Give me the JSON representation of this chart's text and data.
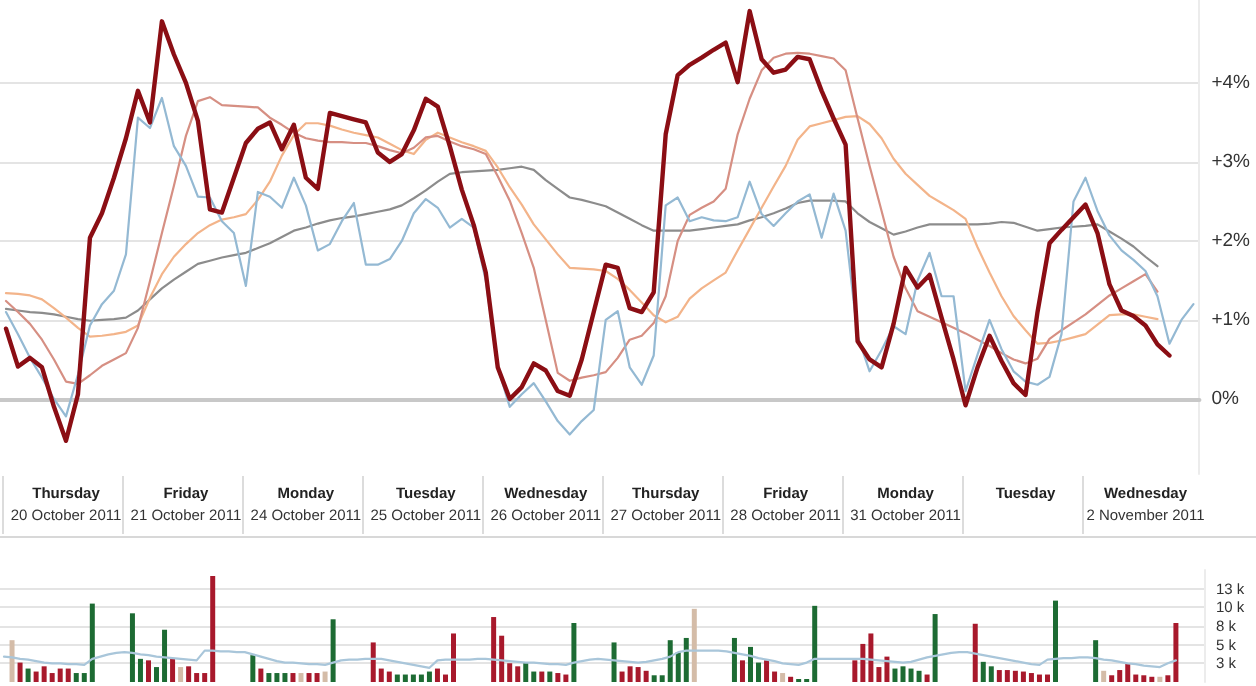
{
  "chart_data": [
    {
      "type": "line",
      "marker": "none",
      "line_style": "solid",
      "grid": "y",
      "categories": [
        null,
        null,
        null,
        null,
        null,
        "Thursday\n20 October 2011",
        null,
        null,
        null,
        null,
        null,
        null,
        null,
        null,
        null,
        "Friday\n21 October 2011",
        null,
        null,
        null,
        null,
        null,
        null,
        null,
        null,
        null,
        "Monday\n24 October 2011",
        null,
        null,
        null,
        null,
        null,
        null,
        null,
        null,
        null,
        "Tuesday\n25 October 2011",
        null,
        null,
        null,
        null,
        null,
        null,
        null,
        null,
        null,
        "Wednesday\n26 October 2011",
        null,
        null,
        null,
        null,
        null,
        null,
        null,
        null,
        null,
        "Thursday\n27 October 2011",
        null,
        null,
        null,
        null,
        null,
        null,
        null,
        null,
        null,
        "Friday\n28 October 2011",
        null,
        null,
        null,
        null,
        null,
        null,
        null,
        null,
        null,
        "Monday\n31 October 2011",
        null,
        null,
        null,
        null,
        null,
        null,
        null,
        null,
        null,
        "Tuesday",
        null,
        null,
        null,
        null,
        null,
        null,
        null,
        null,
        null,
        "Wednesday\n2 November 2011",
        null,
        null,
        null,
        null
      ],
      "ylim": [
        -0.95,
        5.05
      ],
      "yticks": [
        {
          "value": 0,
          "label": "0%"
        },
        {
          "value": 1,
          "label": "+1%"
        },
        {
          "value": 2,
          "label": "+2%"
        },
        {
          "value": 3,
          "label": "+3%"
        },
        {
          "value": 4,
          "label": "+4%"
        }
      ],
      "series": [
        {
          "color": "#8b0e14",
          "values": [
            0.89,
            0.41,
            0.52,
            0.4,
            -0.1,
            -0.53,
            0.06,
            2.04,
            2.35,
            2.8,
            3.3,
            3.9,
            3.5,
            4.78,
            4.36,
            4.0,
            3.52,
            2.4,
            2.36,
            2.8,
            3.24,
            3.42,
            3.5,
            3.16,
            3.47,
            2.8,
            2.66,
            3.62,
            3.58,
            3.54,
            3.5,
            3.12,
            3.0,
            3.1,
            3.4,
            3.8,
            3.7,
            3.2,
            2.65,
            2.2,
            1.6,
            0.4,
            0,
            0.15,
            0.45,
            0.36,
            0.1,
            0.04,
            0.5,
            1.1,
            1.7,
            1.66,
            1.15,
            1.1,
            1.35,
            3.35,
            4.1,
            4.23,
            4.32,
            4.42,
            4.51,
            4.01,
            4.91,
            4.3,
            4.13,
            4.17,
            4.33,
            4.3,
            3.9,
            3.55,
            3.22,
            0.73,
            0.5,
            0.4,
            0.95,
            1.66,
            1.41,
            1.57,
            1.03,
            0.5,
            -0.08,
            0.4,
            0.8,
            0.48,
            0.2,
            0.05,
            1.1,
            1.97,
            2.14,
            2.3,
            2.46,
            2.1,
            1.45,
            1.12,
            1.05,
            0.93,
            0.69,
            0.55,
            null,
            null
          ]
        },
        {
          "color": "#94b9d3",
          "values": [
            1.1,
            0.82,
            0.52,
            0.27,
            0,
            -0.22,
            0.31,
            0.93,
            1.2,
            1.37,
            1.83,
            3.56,
            3.43,
            3.81,
            3.2,
            2.95,
            2.56,
            2.55,
            2.25,
            2.1,
            1.43,
            2.62,
            2.56,
            2.42,
            2.8,
            2.45,
            1.88,
            1.96,
            2.25,
            2.48,
            1.7,
            1.7,
            1.77,
            2.0,
            2.35,
            2.53,
            2.42,
            2.17,
            2.28,
            2.17,
            1.5,
            0.4,
            -0.1,
            0.06,
            0.2,
            -0.03,
            -0.28,
            -0.45,
            -0.28,
            -0.14,
            1.0,
            1.11,
            0.4,
            0.18,
            0.55,
            2.45,
            2.55,
            2.25,
            2.3,
            2.26,
            2.25,
            2.3,
            2.75,
            2.34,
            2.19,
            2.35,
            2.5,
            2.59,
            2.04,
            2.6,
            2.13,
            0.8,
            0.35,
            0.62,
            0.92,
            0.82,
            1.5,
            1.85,
            1.3,
            1.3,
            0.1,
            0.56,
            1.0,
            0.63,
            0.35,
            0.22,
            0.18,
            0.28,
            0.82,
            2.5,
            2.8,
            2.38,
            2.07,
            1.88,
            1.76,
            1.62,
            1.3,
            0.7,
            1.0,
            1.2
          ]
        },
        {
          "color": "#d68f83",
          "values": [
            1.24,
            1.1,
            0.95,
            0.75,
            0.5,
            0.22,
            0.19,
            0.3,
            0.42,
            0.5,
            0.58,
            0.9,
            1.49,
            2.1,
            2.7,
            3.33,
            3.77,
            3.82,
            3.72,
            3.71,
            3.7,
            3.69,
            3.56,
            3.47,
            3.37,
            3.3,
            3.27,
            3.25,
            3.25,
            3.24,
            3.24,
            3.2,
            3.15,
            3.11,
            3.18,
            3.31,
            3.33,
            3.26,
            3.2,
            3.16,
            3.1,
            2.82,
            2.51,
            2.1,
            1.66,
            1.0,
            0.33,
            0.23,
            0.27,
            0.3,
            0.34,
            0.52,
            0.75,
            0.8,
            0.96,
            1.3,
            2.0,
            2.33,
            2.42,
            2.5,
            2.66,
            3.35,
            3.8,
            4.16,
            4.32,
            4.37,
            4.38,
            4.37,
            4.34,
            4.31,
            4.16,
            3.55,
            2.95,
            2.38,
            1.8,
            1.4,
            1.11,
            1.04,
            0.97,
            0.9,
            0.83,
            0.75,
            0.67,
            0.58,
            0.5,
            0.45,
            0.51,
            0.76,
            0.87,
            0.97,
            1.07,
            1.19,
            1.31,
            1.4,
            1.49,
            1.58,
            1.36,
            null,
            null,
            null
          ]
        },
        {
          "color": "#f3b48a",
          "values": [
            1.34,
            1.33,
            1.31,
            1.26,
            1.15,
            1.03,
            0.9,
            0.79,
            0.8,
            0.82,
            0.85,
            0.93,
            1.28,
            1.58,
            1.8,
            1.96,
            2.1,
            2.2,
            2.27,
            2.3,
            2.34,
            2.52,
            2.75,
            3.08,
            3.34,
            3.49,
            3.49,
            3.46,
            3.41,
            3.37,
            3.34,
            3.31,
            3.23,
            3.15,
            3.1,
            3.28,
            3.37,
            3.31,
            3.25,
            3.2,
            3.14,
            2.93,
            2.68,
            2.46,
            2.21,
            2.02,
            1.83,
            1.66,
            1.65,
            1.64,
            1.62,
            1.52,
            1.38,
            1.22,
            1.06,
            0.97,
            1.04,
            1.27,
            1.4,
            1.5,
            1.6,
            1.88,
            2.15,
            2.42,
            2.69,
            2.95,
            3.28,
            3.45,
            3.49,
            3.53,
            3.57,
            3.58,
            3.48,
            3.3,
            3.04,
            2.85,
            2.71,
            2.57,
            2.48,
            2.39,
            2.28,
            1.92,
            1.6,
            1.3,
            1.05,
            0.87,
            0.7,
            0.71,
            0.74,
            0.78,
            0.82,
            0.94,
            1.06,
            1.07,
            1.07,
            1.04,
            1.01,
            null,
            null,
            null
          ]
        },
        {
          "color": "#8c8c8c",
          "values": [
            1.14,
            1.12,
            1.1,
            1.09,
            1.07,
            1.04,
            1.01,
            0.99,
            1.0,
            1.01,
            1.03,
            1.12,
            1.26,
            1.4,
            1.51,
            1.61,
            1.71,
            1.75,
            1.79,
            1.82,
            1.85,
            1.91,
            1.97,
            2.05,
            2.13,
            2.17,
            2.22,
            2.26,
            2.29,
            2.31,
            2.34,
            2.37,
            2.4,
            2.45,
            2.54,
            2.64,
            2.75,
            2.85,
            2.87,
            2.88,
            2.89,
            2.9,
            2.92,
            2.94,
            2.9,
            2.77,
            2.66,
            2.55,
            2.52,
            2.48,
            2.44,
            2.36,
            2.28,
            2.2,
            2.13,
            2.13,
            2.13,
            2.13,
            2.15,
            2.17,
            2.19,
            2.21,
            2.26,
            2.3,
            2.35,
            2.41,
            2.48,
            2.51,
            2.51,
            2.51,
            2.5,
            2.35,
            2.24,
            2.16,
            2.08,
            2.12,
            2.17,
            2.21,
            2.21,
            2.21,
            2.21,
            2.21,
            2.22,
            2.24,
            2.23,
            2.18,
            2.13,
            2.15,
            2.17,
            2.18,
            2.19,
            2.21,
            2.12,
            2.03,
            1.93,
            1.8,
            1.68,
            null,
            null,
            null
          ]
        }
      ]
    },
    {
      "type": "bar",
      "grid": "y",
      "tick_labels": "y",
      "marker": "none",
      "categories": [
        null,
        null,
        null,
        null,
        null,
        null,
        null,
        null,
        null,
        null,
        null,
        null,
        null,
        null,
        null,
        null,
        null,
        null,
        null,
        null,
        null,
        null,
        null,
        null,
        null,
        null,
        null,
        null,
        null,
        null,
        null,
        null,
        null,
        null,
        null,
        null,
        null,
        null,
        null,
        null,
        null,
        null,
        null,
        null,
        null,
        null,
        null,
        null,
        null,
        null,
        null,
        null,
        null,
        null,
        null,
        null,
        null,
        null,
        null,
        null,
        null,
        null,
        null,
        null,
        null,
        null,
        null,
        null,
        null,
        null,
        null,
        null,
        null,
        null,
        null,
        null,
        null,
        null,
        null,
        null,
        null,
        null,
        null,
        null,
        null,
        null,
        null,
        null,
        null,
        null,
        null,
        null,
        null,
        null,
        null,
        null,
        null,
        null,
        null,
        null,
        null,
        null,
        null,
        null,
        null,
        null,
        null,
        null,
        null,
        null,
        null,
        null,
        null,
        null,
        null,
        null,
        null,
        null,
        null,
        null,
        null,
        null,
        null,
        null,
        null,
        null,
        null,
        null,
        null,
        null,
        null,
        null,
        null,
        null,
        null,
        null,
        null,
        null,
        null,
        null,
        null,
        null,
        null,
        null,
        null,
        null,
        null,
        null,
        null,
        null
      ],
      "ylim": [
        0,
        15
      ],
      "yticks": [
        {
          "value": 2.5,
          "label": "3 k"
        },
        {
          "value": 5,
          "label": "5 k"
        },
        {
          "value": 7.5,
          "label": "8 k"
        },
        {
          "value": 10,
          "label": "10 k"
        },
        {
          "value": 12.5,
          "label": "13 k"
        }
      ],
      "series": [
        {
          "values": [
            null,
            5.6,
            2.6,
            1.8,
            1.4,
            2.1,
            1.2,
            1.8,
            1.8,
            1.2,
            1.2,
            10.5,
            null,
            null,
            null,
            null,
            9.2,
            3.1,
            2.9,
            2.0,
            7.0,
            3.1,
            2.0,
            2.1,
            1.2,
            1.2,
            14.2,
            null,
            null,
            null,
            null,
            3.6,
            1.8,
            1.2,
            1.2,
            1.2,
            1.2,
            1.2,
            1.2,
            1.2,
            1.4,
            8.4,
            null,
            null,
            null,
            null,
            5.3,
            1.8,
            1.4,
            1.0,
            1.0,
            1.0,
            1.0,
            1.4,
            1.8,
            1.0,
            6.5,
            null,
            null,
            null,
            null,
            8.7,
            6.2,
            2.5,
            2.1,
            2.6,
            1.4,
            1.4,
            1.4,
            1.2,
            1.0,
            7.9,
            null,
            null,
            null,
            null,
            5.3,
            1.4,
            2.1,
            2.0,
            1.5,
            0.9,
            0.9,
            5.6,
            4.0,
            5.9,
            9.8,
            null,
            null,
            null,
            null,
            5.9,
            2.9,
            4.7,
            2.6,
            2.9,
            1.4,
            1.2,
            0.7,
            0.4,
            0.4,
            10.2,
            null,
            null,
            null,
            null,
            2.9,
            5.1,
            6.5,
            2.0,
            3.4,
            1.8,
            2.1,
            1.8,
            1.5,
            1.0,
            9.1,
            null,
            null,
            null,
            null,
            7.8,
            2.7,
            2.1,
            1.6,
            1.6,
            1.5,
            1.4,
            1.2,
            1.0,
            1.0,
            10.9,
            null,
            null,
            null,
            null,
            5.6,
            1.5,
            0.9,
            1.6,
            2.5,
            1.0,
            0.9,
            0.7,
            0.7,
            0.9,
            7.9,
            null,
            null,
            null
          ],
          "colors": [
            null,
            "#d4bca8",
            "#a8192c",
            "#1d6b33",
            "#a8192c",
            "#a8192c",
            "#a8192c",
            "#a8192c",
            "#a8192c",
            "#1d6b33",
            "#1d6b33",
            "#1d6b33",
            null,
            null,
            null,
            null,
            "#1d6b33",
            "#1d6b33",
            "#a8192c",
            "#1d6b33",
            "#1d6b33",
            "#a8192c",
            "#d4bca8",
            "#a8192c",
            "#a8192c",
            "#a8192c",
            "#a8192c",
            null,
            null,
            null,
            null,
            "#1d6b33",
            "#a8192c",
            "#1d6b33",
            "#1d6b33",
            "#1d6b33",
            "#a8192c",
            "#d4bca8",
            "#a8192c",
            "#a8192c",
            "#d4bca8",
            "#1d6b33",
            null,
            null,
            null,
            null,
            "#a8192c",
            "#a8192c",
            "#a8192c",
            "#1d6b33",
            "#1d6b33",
            "#1d6b33",
            "#1d6b33",
            "#1d6b33",
            "#a8192c",
            "#a8192c",
            "#a8192c",
            null,
            null,
            null,
            null,
            "#a8192c",
            "#a8192c",
            "#a8192c",
            "#a8192c",
            "#1d6b33",
            "#1d6b33",
            "#a8192c",
            "#1d6b33",
            "#a8192c",
            "#a8192c",
            "#1d6b33",
            null,
            null,
            null,
            null,
            "#1d6b33",
            "#a8192c",
            "#a8192c",
            "#a8192c",
            "#a8192c",
            "#1d6b33",
            "#1d6b33",
            "#1d6b33",
            "#1d6b33",
            "#1d6b33",
            "#d4bca8",
            null,
            null,
            null,
            null,
            "#1d6b33",
            "#a8192c",
            "#1d6b33",
            "#1d6b33",
            "#a8192c",
            "#a8192c",
            "#d4bca8",
            "#a8192c",
            "#1d6b33",
            "#1d6b33",
            "#1d6b33",
            null,
            null,
            null,
            null,
            "#a8192c",
            "#a8192c",
            "#a8192c",
            "#a8192c",
            "#a8192c",
            "#1d6b33",
            "#1d6b33",
            "#1d6b33",
            "#1d6b33",
            "#a8192c",
            "#1d6b33",
            null,
            null,
            null,
            null,
            "#a8192c",
            "#1d6b33",
            "#1d6b33",
            "#a8192c",
            "#a8192c",
            "#a8192c",
            "#a8192c",
            "#a8192c",
            "#a8192c",
            "#a8192c",
            "#1d6b33",
            null,
            null,
            null,
            null,
            "#1d6b33",
            "#d4bca8",
            "#a8192c",
            "#a8192c",
            "#a8192c",
            "#a8192c",
            "#a8192c",
            "#a8192c",
            "#d4bca8",
            "#a8192c",
            "#a8192c",
            null,
            null,
            null
          ]
        },
        {
          "type": "line",
          "color": "#a9c6da",
          "values": [
            3.4,
            3.3,
            3.1,
            3.0,
            2.8,
            2.6,
            2.5,
            2.5,
            2.4,
            2.4,
            2.3,
            3.1,
            3.4,
            3.7,
            3.9,
            4.0,
            3.9,
            3.7,
            3.6,
            3.4,
            3.3,
            3.2,
            3.1,
            3.0,
            2.9,
            4.2,
            4.2,
            4.1,
            4.1,
            4.0,
            4.0,
            3.7,
            3.4,
            3.1,
            2.8,
            2.6,
            2.6,
            2.5,
            2.4,
            2.4,
            2.3,
            2.6,
            2.9,
            3.0,
            3.0,
            3.1,
            3.1,
            3.1,
            2.9,
            2.7,
            2.5,
            2.3,
            2.1,
            1.9,
            2.9,
            3.0,
            3.0,
            3.0,
            3.0,
            3.1,
            3.1,
            3.0,
            2.9,
            2.8,
            2.7,
            2.6,
            2.6,
            2.5,
            2.4,
            2.4,
            2.3,
            2.6,
            2.8,
            3.0,
            3.1,
            3.0,
            2.9,
            2.8,
            2.7,
            2.6,
            2.7,
            2.9,
            3.1,
            3.4,
            4.0,
            4.2,
            4.2,
            4.2,
            4.2,
            4.2,
            4.1,
            3.9,
            3.7,
            3.5,
            3.2,
            3.0,
            2.8,
            2.5,
            2.4,
            2.3,
            2.6,
            3.1,
            3.1,
            3.1,
            3.1,
            3.1,
            3.1,
            3.1,
            3.0,
            2.9,
            2.8,
            2.7,
            2.6,
            2.7,
            3.0,
            3.3,
            3.5,
            3.7,
            3.9,
            4.0,
            4.0,
            3.8,
            3.6,
            3.4,
            3.2,
            3.0,
            2.8,
            2.6,
            2.4,
            2.3,
            3.0,
            3.1,
            3.2,
            3.2,
            3.3,
            3.3,
            3.2,
            3.0,
            2.9,
            2.7,
            2.5,
            2.4,
            2.2,
            2.1,
            2.0,
            2.5,
            2.9,
            null,
            null,
            null
          ]
        }
      ]
    }
  ]
}
